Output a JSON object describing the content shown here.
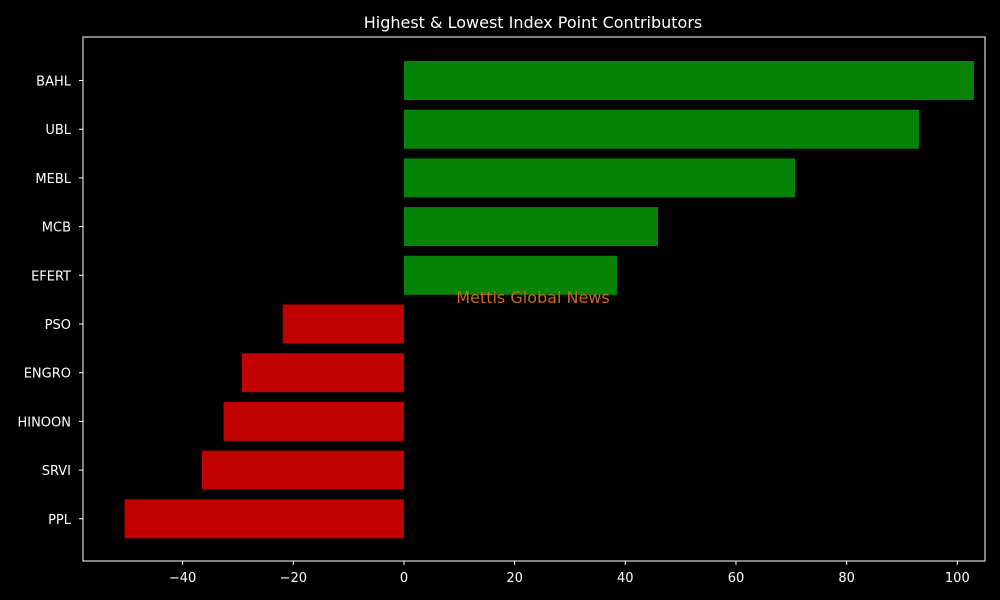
{
  "page": {
    "background": "#000000",
    "text_color": "#ffffff"
  },
  "chart_data": {
    "type": "bar",
    "orientation": "horizontal",
    "title": "Highest & Lowest Index Point Contributors",
    "xlabel": "",
    "ylabel": "",
    "categories": [
      "BAHL",
      "UBL",
      "MEBL",
      "MCB",
      "EFERT",
      "PSO",
      "ENGRO",
      "HINOON",
      "SRVI",
      "PPL"
    ],
    "values": [
      103.0,
      93.1,
      70.7,
      45.9,
      38.5,
      -21.9,
      -29.3,
      -32.6,
      -36.5,
      -50.5
    ],
    "xlim": [
      -58,
      105
    ],
    "xticks": [
      -40,
      -20,
      0,
      20,
      40,
      60,
      80,
      100
    ],
    "xtick_labels": [
      "−40",
      "−20",
      "0",
      "20",
      "40",
      "60",
      "80",
      "100"
    ],
    "positive_color": "#078307",
    "negative_color": "#c10000",
    "grid": false,
    "legend": "none"
  },
  "watermark": {
    "text": "Mettis Global News",
    "color": "#c8691e"
  }
}
